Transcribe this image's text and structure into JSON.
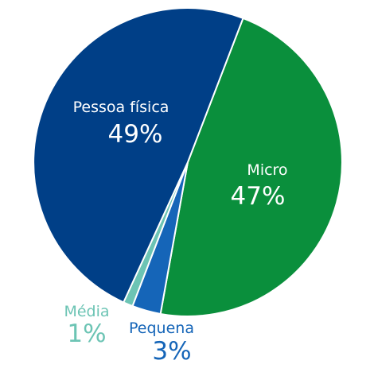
{
  "chart_data": {
    "type": "pie",
    "title": "",
    "slices": [
      {
        "label": "Micro",
        "value": 47,
        "value_label": "47%",
        "color": "#0a8f3c",
        "label_color": "#ffffff",
        "label_position": "inside"
      },
      {
        "label": "Pequena",
        "value": 3,
        "value_label": "3%",
        "color": "#1565b8",
        "label_color": "#1565b8",
        "label_position": "outside"
      },
      {
        "label": "Média",
        "value": 1,
        "value_label": "1%",
        "color": "#6cc4b4",
        "label_color": "#6cc4b4",
        "label_position": "outside"
      },
      {
        "label": "Pessoa física",
        "value": 49,
        "value_label": "49%",
        "color": "#003f87",
        "label_color": "#ffffff",
        "label_position": "inside"
      }
    ],
    "legend": "none"
  }
}
